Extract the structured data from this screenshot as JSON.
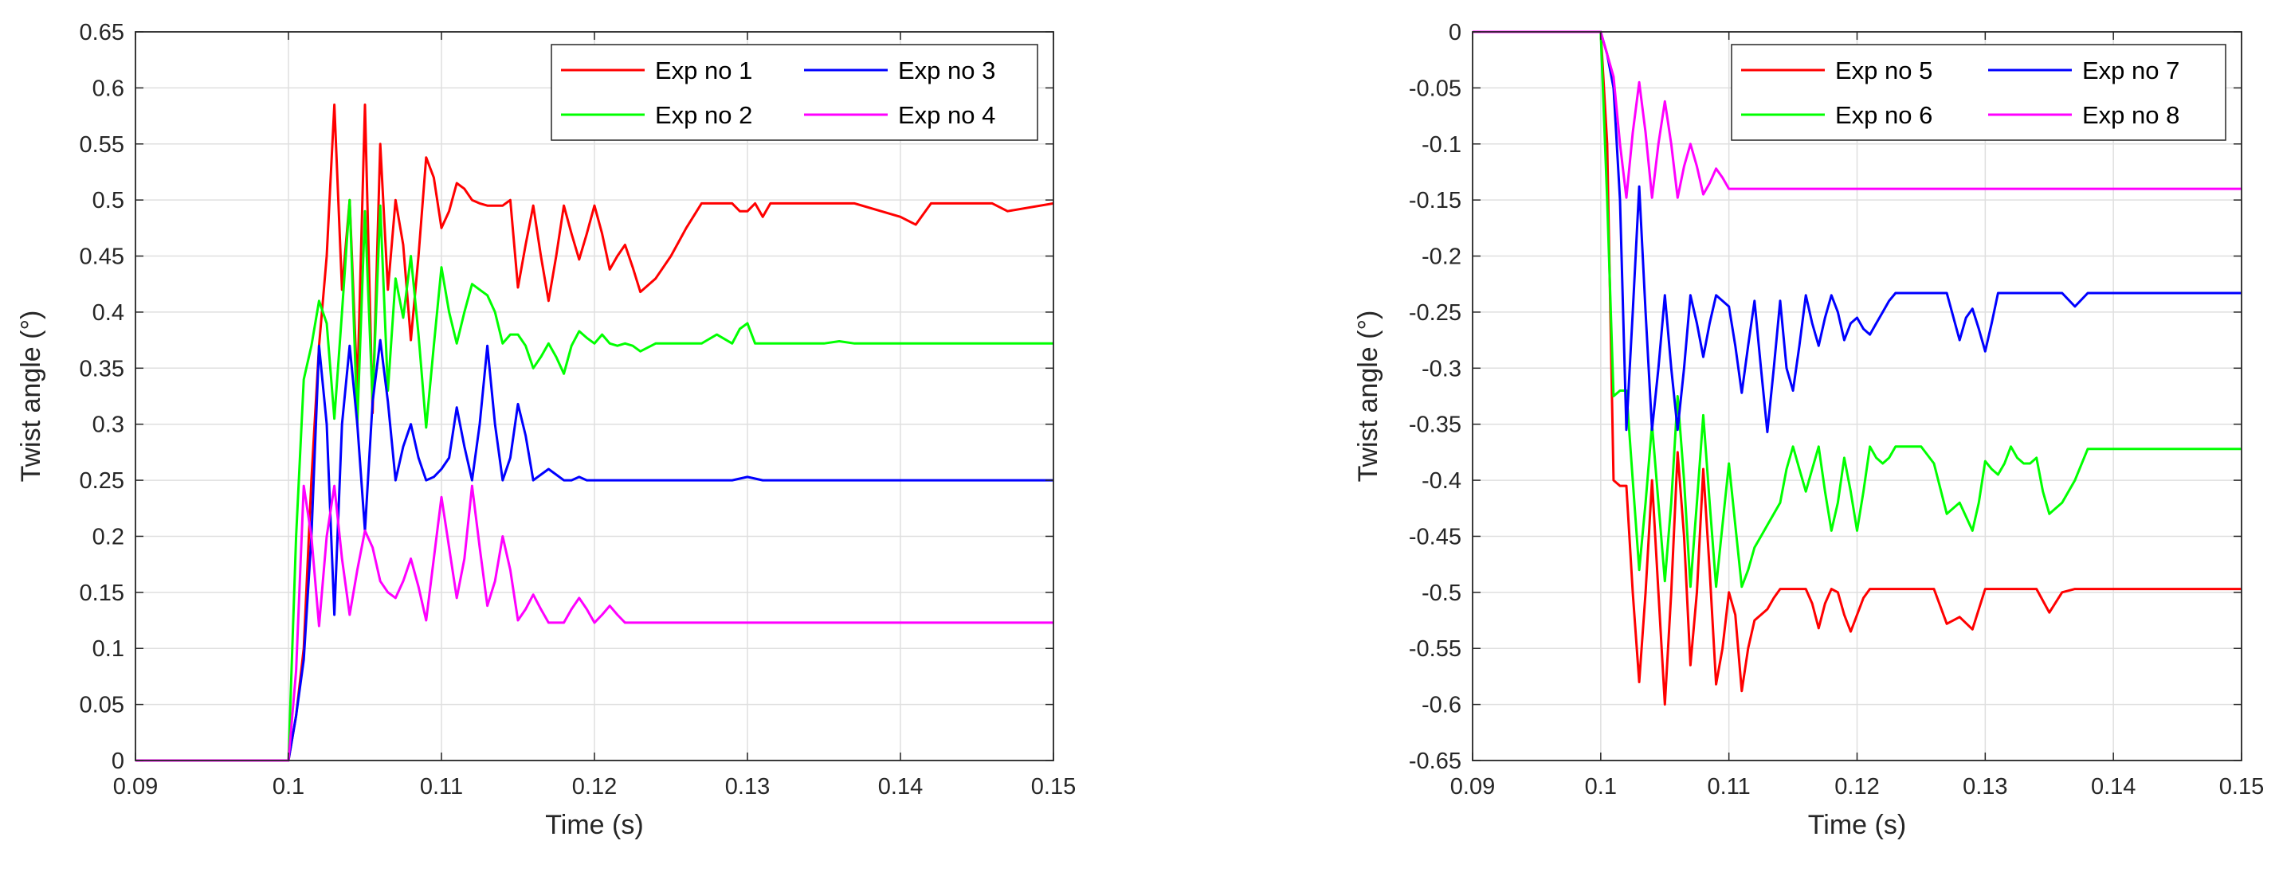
{
  "chart_data": [
    {
      "type": "line",
      "xlabel": "Time (s)",
      "ylabel": "Twist angle (°)",
      "xlim": [
        0.09,
        0.15
      ],
      "ylim": [
        0,
        0.65
      ],
      "xticks": [
        0.09,
        0.1,
        0.11,
        0.12,
        0.13,
        0.14,
        0.15
      ],
      "yticks": [
        0,
        0.05,
        0.1,
        0.15,
        0.2,
        0.25,
        0.3,
        0.35,
        0.4,
        0.45,
        0.5,
        0.55,
        0.6,
        0.65
      ],
      "grid": true,
      "legend_position": "top-right",
      "legend_columns": 2,
      "series": [
        {
          "name": "Exp no 1",
          "color": "#ff0000",
          "x": [
            0.09,
            0.1,
            0.1005,
            0.101,
            0.1015,
            0.102,
            0.1025,
            0.103,
            0.1035,
            0.104,
            0.1045,
            0.105,
            0.1055,
            0.106,
            0.1065,
            0.107,
            0.1075,
            0.108,
            0.1085,
            0.109,
            0.1095,
            0.11,
            0.1105,
            0.111,
            0.1115,
            0.112,
            0.1125,
            0.113,
            0.1135,
            0.114,
            0.1145,
            0.115,
            0.1155,
            0.116,
            0.1165,
            0.117,
            0.1175,
            0.118,
            0.1185,
            0.119,
            0.1195,
            0.12,
            0.1205,
            0.121,
            0.1215,
            0.122,
            0.1225,
            0.123,
            0.124,
            0.125,
            0.126,
            0.127,
            0.128,
            0.129,
            0.1295,
            0.13,
            0.1305,
            0.131,
            0.1315,
            0.132,
            0.137,
            0.14,
            0.141,
            0.142,
            0.146,
            0.147,
            0.15
          ],
          "y": [
            0,
            0,
            0.04,
            0.1,
            0.25,
            0.37,
            0.45,
            0.585,
            0.42,
            0.5,
            0.33,
            0.585,
            0.31,
            0.55,
            0.42,
            0.5,
            0.46,
            0.375,
            0.45,
            0.538,
            0.52,
            0.475,
            0.49,
            0.515,
            0.51,
            0.5,
            0.497,
            0.495,
            0.495,
            0.495,
            0.5,
            0.422,
            0.46,
            0.495,
            0.45,
            0.41,
            0.45,
            0.495,
            0.47,
            0.447,
            0.47,
            0.495,
            0.47,
            0.438,
            0.45,
            0.46,
            0.44,
            0.418,
            0.43,
            0.45,
            0.475,
            0.497,
            0.497,
            0.497,
            0.49,
            0.49,
            0.497,
            0.485,
            0.497,
            0.497,
            0.497,
            0.485,
            0.478,
            0.497,
            0.497,
            0.49,
            0.497
          ]
        },
        {
          "name": "Exp no 2",
          "color": "#00ff00",
          "x": [
            0.09,
            0.1,
            0.1005,
            0.101,
            0.1015,
            0.102,
            0.1025,
            0.103,
            0.1035,
            0.104,
            0.1045,
            0.105,
            0.1055,
            0.106,
            0.1065,
            0.107,
            0.1075,
            0.108,
            0.1085,
            0.109,
            0.1095,
            0.11,
            0.1105,
            0.111,
            0.1115,
            0.112,
            0.1125,
            0.113,
            0.1135,
            0.114,
            0.1145,
            0.115,
            0.1155,
            0.116,
            0.1165,
            0.117,
            0.1175,
            0.118,
            0.1185,
            0.119,
            0.1195,
            0.12,
            0.1205,
            0.121,
            0.1215,
            0.122,
            0.1225,
            0.123,
            0.124,
            0.125,
            0.126,
            0.127,
            0.128,
            0.129,
            0.1295,
            0.13,
            0.1305,
            0.131,
            0.135,
            0.136,
            0.137,
            0.15
          ],
          "y": [
            0,
            0,
            0.2,
            0.34,
            0.37,
            0.41,
            0.39,
            0.305,
            0.4,
            0.5,
            0.3,
            0.49,
            0.32,
            0.495,
            0.33,
            0.43,
            0.395,
            0.45,
            0.38,
            0.297,
            0.37,
            0.44,
            0.4,
            0.372,
            0.4,
            0.425,
            0.42,
            0.415,
            0.4,
            0.372,
            0.38,
            0.38,
            0.37,
            0.35,
            0.36,
            0.372,
            0.36,
            0.345,
            0.37,
            0.383,
            0.377,
            0.372,
            0.38,
            0.372,
            0.37,
            0.372,
            0.37,
            0.365,
            0.372,
            0.372,
            0.372,
            0.372,
            0.38,
            0.372,
            0.385,
            0.39,
            0.372,
            0.372,
            0.372,
            0.374,
            0.372,
            0.372
          ]
        },
        {
          "name": "Exp no 3",
          "color": "#0000ff",
          "x": [
            0.09,
            0.1,
            0.1005,
            0.101,
            0.1015,
            0.102,
            0.1025,
            0.103,
            0.1035,
            0.104,
            0.1045,
            0.105,
            0.1055,
            0.106,
            0.1065,
            0.107,
            0.1075,
            0.108,
            0.1085,
            0.109,
            0.1095,
            0.11,
            0.1105,
            0.111,
            0.1115,
            0.112,
            0.1125,
            0.113,
            0.1135,
            0.114,
            0.1145,
            0.115,
            0.1155,
            0.116,
            0.1165,
            0.117,
            0.1175,
            0.118,
            0.1185,
            0.119,
            0.1195,
            0.12,
            0.129,
            0.13,
            0.131,
            0.15
          ],
          "y": [
            0,
            0,
            0.04,
            0.09,
            0.2,
            0.37,
            0.3,
            0.13,
            0.3,
            0.37,
            0.3,
            0.205,
            0.32,
            0.375,
            0.32,
            0.25,
            0.28,
            0.3,
            0.27,
            0.25,
            0.253,
            0.26,
            0.27,
            0.315,
            0.28,
            0.25,
            0.3,
            0.37,
            0.3,
            0.25,
            0.27,
            0.318,
            0.29,
            0.25,
            0.255,
            0.26,
            0.255,
            0.25,
            0.25,
            0.253,
            0.25,
            0.25,
            0.25,
            0.253,
            0.25,
            0.25
          ]
        },
        {
          "name": "Exp no 4",
          "color": "#ff00ff",
          "x": [
            0.09,
            0.1,
            0.1005,
            0.101,
            0.1015,
            0.102,
            0.1025,
            0.103,
            0.1035,
            0.104,
            0.1045,
            0.105,
            0.1055,
            0.106,
            0.1065,
            0.107,
            0.1075,
            0.108,
            0.1085,
            0.109,
            0.1095,
            0.11,
            0.1105,
            0.111,
            0.1115,
            0.112,
            0.1125,
            0.113,
            0.1135,
            0.114,
            0.1145,
            0.115,
            0.1155,
            0.116,
            0.1165,
            0.117,
            0.1175,
            0.118,
            0.1185,
            0.119,
            0.1195,
            0.12,
            0.1205,
            0.121,
            0.1215,
            0.122,
            0.1225,
            0.15
          ],
          "y": [
            0,
            0,
            0.08,
            0.245,
            0.2,
            0.12,
            0.2,
            0.245,
            0.18,
            0.13,
            0.17,
            0.205,
            0.19,
            0.16,
            0.15,
            0.145,
            0.16,
            0.18,
            0.155,
            0.125,
            0.18,
            0.235,
            0.19,
            0.145,
            0.18,
            0.245,
            0.19,
            0.138,
            0.16,
            0.2,
            0.17,
            0.125,
            0.135,
            0.148,
            0.135,
            0.123,
            0.123,
            0.123,
            0.135,
            0.145,
            0.135,
            0.123,
            0.13,
            0.138,
            0.13,
            0.123,
            0.123,
            0.123
          ]
        }
      ]
    },
    {
      "type": "line",
      "xlabel": "Time (s)",
      "ylabel": "Twist angle (°)",
      "xlim": [
        0.09,
        0.15
      ],
      "ylim": [
        -0.65,
        0
      ],
      "xticks": [
        0.09,
        0.1,
        0.11,
        0.12,
        0.13,
        0.14,
        0.15
      ],
      "yticks": [
        -0.65,
        -0.6,
        -0.55,
        -0.5,
        -0.45,
        -0.4,
        -0.35,
        -0.3,
        -0.25,
        -0.2,
        -0.15,
        -0.1,
        -0.05,
        0
      ],
      "grid": true,
      "legend_position": "top-right",
      "legend_columns": 2,
      "series": [
        {
          "name": "Exp no 5",
          "color": "#ff0000",
          "x": [
            0.09,
            0.1,
            0.1005,
            0.101,
            0.1015,
            0.102,
            0.1025,
            0.103,
            0.1035,
            0.104,
            0.1045,
            0.105,
            0.1055,
            0.106,
            0.1065,
            0.107,
            0.1075,
            0.108,
            0.1085,
            0.109,
            0.1095,
            0.11,
            0.1105,
            0.111,
            0.1115,
            0.112,
            0.1125,
            0.113,
            0.1135,
            0.114,
            0.1145,
            0.115,
            0.1155,
            0.116,
            0.1165,
            0.117,
            0.1175,
            0.118,
            0.1185,
            0.119,
            0.1195,
            0.12,
            0.1205,
            0.121,
            0.1215,
            0.122,
            0.1225,
            0.123,
            0.124,
            0.125,
            0.126,
            0.127,
            0.128,
            0.129,
            0.13,
            0.131,
            0.134,
            0.135,
            0.136,
            0.137,
            0.15
          ],
          "y": [
            0,
            0,
            -0.1,
            -0.4,
            -0.405,
            -0.405,
            -0.5,
            -0.58,
            -0.5,
            -0.4,
            -0.5,
            -0.6,
            -0.5,
            -0.375,
            -0.45,
            -0.565,
            -0.5,
            -0.39,
            -0.48,
            -0.582,
            -0.55,
            -0.5,
            -0.52,
            -0.588,
            -0.55,
            -0.525,
            -0.52,
            -0.515,
            -0.505,
            -0.497,
            -0.497,
            -0.497,
            -0.497,
            -0.497,
            -0.51,
            -0.532,
            -0.51,
            -0.497,
            -0.5,
            -0.52,
            -0.535,
            -0.52,
            -0.505,
            -0.497,
            -0.497,
            -0.497,
            -0.497,
            -0.497,
            -0.497,
            -0.497,
            -0.497,
            -0.528,
            -0.522,
            -0.533,
            -0.497,
            -0.497,
            -0.497,
            -0.518,
            -0.5,
            -0.497,
            -0.497
          ]
        },
        {
          "name": "Exp no 6",
          "color": "#00ff00",
          "x": [
            0.09,
            0.1,
            0.1005,
            0.101,
            0.1015,
            0.102,
            0.1025,
            0.103,
            0.1035,
            0.104,
            0.1045,
            0.105,
            0.1055,
            0.106,
            0.1065,
            0.107,
            0.1075,
            0.108,
            0.1085,
            0.109,
            0.1095,
            0.11,
            0.1105,
            0.111,
            0.1115,
            0.112,
            0.1125,
            0.113,
            0.1135,
            0.114,
            0.1145,
            0.115,
            0.1155,
            0.116,
            0.1165,
            0.117,
            0.1175,
            0.118,
            0.1185,
            0.119,
            0.1195,
            0.12,
            0.1205,
            0.121,
            0.1215,
            0.122,
            0.1225,
            0.123,
            0.124,
            0.125,
            0.126,
            0.127,
            0.128,
            0.129,
            0.1295,
            0.13,
            0.1305,
            0.131,
            0.1315,
            0.132,
            0.1325,
            0.133,
            0.1335,
            0.134,
            0.1345,
            0.135,
            0.136,
            0.137,
            0.138,
            0.15
          ],
          "y": [
            0,
            0,
            -0.15,
            -0.325,
            -0.32,
            -0.32,
            -0.4,
            -0.48,
            -0.42,
            -0.35,
            -0.42,
            -0.49,
            -0.42,
            -0.325,
            -0.4,
            -0.495,
            -0.42,
            -0.342,
            -0.42,
            -0.495,
            -0.44,
            -0.385,
            -0.44,
            -0.495,
            -0.48,
            -0.46,
            -0.45,
            -0.44,
            -0.43,
            -0.42,
            -0.39,
            -0.37,
            -0.39,
            -0.41,
            -0.39,
            -0.37,
            -0.41,
            -0.445,
            -0.42,
            -0.38,
            -0.41,
            -0.445,
            -0.41,
            -0.37,
            -0.38,
            -0.385,
            -0.38,
            -0.37,
            -0.37,
            -0.37,
            -0.385,
            -0.43,
            -0.42,
            -0.445,
            -0.42,
            -0.383,
            -0.39,
            -0.395,
            -0.385,
            -0.37,
            -0.38,
            -0.385,
            -0.385,
            -0.38,
            -0.41,
            -0.43,
            -0.42,
            -0.4,
            -0.372,
            -0.372
          ]
        },
        {
          "name": "Exp no 7",
          "color": "#0000ff",
          "x": [
            0.09,
            0.1,
            0.1005,
            0.101,
            0.1015,
            0.102,
            0.1025,
            0.103,
            0.1035,
            0.104,
            0.1045,
            0.105,
            0.1055,
            0.106,
            0.1065,
            0.107,
            0.1075,
            0.108,
            0.1085,
            0.109,
            0.1095,
            0.11,
            0.1105,
            0.111,
            0.1115,
            0.112,
            0.1125,
            0.113,
            0.1135,
            0.114,
            0.1145,
            0.115,
            0.1155,
            0.116,
            0.1165,
            0.117,
            0.1175,
            0.118,
            0.1185,
            0.119,
            0.1195,
            0.12,
            0.1205,
            0.121,
            0.1215,
            0.122,
            0.1225,
            0.123,
            0.127,
            0.128,
            0.1285,
            0.129,
            0.1295,
            0.13,
            0.1305,
            0.131,
            0.136,
            0.137,
            0.138,
            0.15
          ],
          "y": [
            0,
            0,
            -0.02,
            -0.05,
            -0.15,
            -0.355,
            -0.25,
            -0.138,
            -0.25,
            -0.355,
            -0.3,
            -0.235,
            -0.3,
            -0.355,
            -0.3,
            -0.235,
            -0.26,
            -0.29,
            -0.26,
            -0.235,
            -0.24,
            -0.245,
            -0.28,
            -0.322,
            -0.28,
            -0.24,
            -0.3,
            -0.357,
            -0.3,
            -0.24,
            -0.3,
            -0.32,
            -0.28,
            -0.235,
            -0.26,
            -0.28,
            -0.255,
            -0.235,
            -0.25,
            -0.275,
            -0.26,
            -0.255,
            -0.265,
            -0.27,
            -0.26,
            -0.25,
            -0.24,
            -0.233,
            -0.233,
            -0.275,
            -0.255,
            -0.247,
            -0.265,
            -0.285,
            -0.26,
            -0.233,
            -0.233,
            -0.245,
            -0.233,
            -0.233
          ]
        },
        {
          "name": "Exp no 8",
          "color": "#ff00ff",
          "x": [
            0.09,
            0.1,
            0.1005,
            0.101,
            0.1015,
            0.102,
            0.1025,
            0.103,
            0.1035,
            0.104,
            0.1045,
            0.105,
            0.1055,
            0.106,
            0.1065,
            0.107,
            0.1075,
            0.108,
            0.1085,
            0.109,
            0.1095,
            0.11,
            0.1105,
            0.15
          ],
          "y": [
            0,
            0,
            -0.02,
            -0.04,
            -0.1,
            -0.148,
            -0.09,
            -0.045,
            -0.09,
            -0.148,
            -0.1,
            -0.062,
            -0.1,
            -0.148,
            -0.12,
            -0.1,
            -0.12,
            -0.145,
            -0.135,
            -0.122,
            -0.13,
            -0.14,
            -0.14,
            -0.14
          ]
        }
      ]
    }
  ]
}
